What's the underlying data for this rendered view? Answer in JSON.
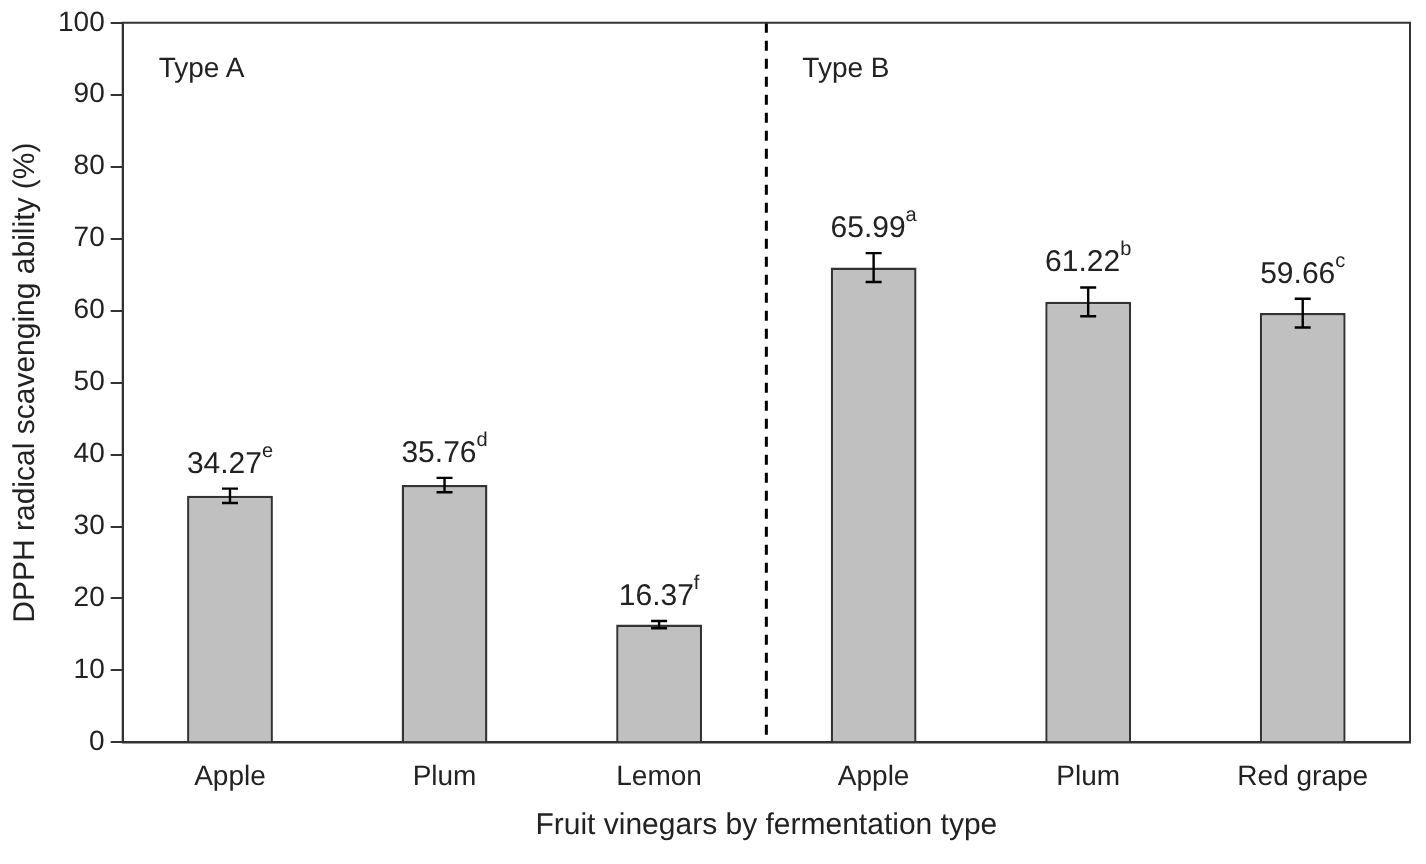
{
  "chart_data": {
    "type": "bar",
    "xlabel": "Fruit vinegars by fermentation type",
    "ylabel": "DPPH radical scavenging ability (%)",
    "categories": [
      "Apple",
      "Plum",
      "Lemon",
      "Apple",
      "Plum",
      "Red grape"
    ],
    "values": [
      34.27,
      35.76,
      16.37,
      65.99,
      61.22,
      59.66
    ],
    "errors": [
      1,
      1,
      0.5,
      2,
      2,
      2
    ],
    "value_labels": [
      "34.27$^{e}$",
      "35.76$^{d}$",
      "16.37$^{f}$",
      "65.99$^{a}$",
      "61.22$^{b}$",
      "59.66$^{c}$"
    ],
    "color": "#c0c0c0",
    "ylim": [
      0,
      100
    ],
    "yticks": [
      0,
      10,
      20,
      30,
      40,
      50,
      60,
      70,
      80,
      90,
      100
    ],
    "annotations": [
      "Type A",
      "Type B"
    ],
    "grid": false,
    "legend": false
  }
}
